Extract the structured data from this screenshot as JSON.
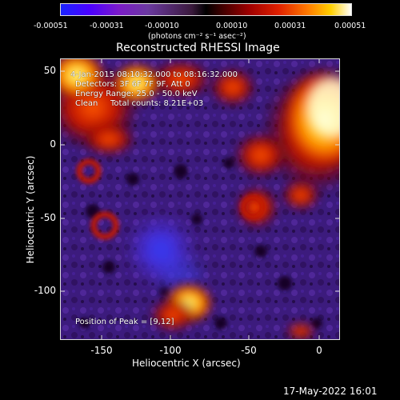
{
  "colorbar": {
    "ticks": [
      "-0.00051",
      "-0.00031",
      "-0.00010",
      "0.00010",
      "0.00031",
      "0.00051"
    ],
    "units": "(photons cm⁻² s⁻¹ asec⁻²)"
  },
  "title": "Reconstructed RHESSI Image",
  "info": {
    "time": "4-Jan-2015 08:10:32.000 to 08:16:32.000",
    "detectors": "Detectors: 3F 6F 7F 9F, Att 0",
    "energy": "Energy Range: 25.0 - 50.0 keV",
    "clean": "Clean",
    "counts": "Total counts: 8.21E+03",
    "peak": "Position of Peak = [9,12]"
  },
  "axes": {
    "xlabel": "Heliocentric X (arcsec)",
    "ylabel": "Heliocentric Y (arcsec)",
    "xticks": [
      "-150",
      "-100",
      "-50",
      "0"
    ],
    "yticks": [
      "50",
      "0",
      "-50",
      "-100"
    ]
  },
  "timestamp": "17-May-2022 16:01"
}
